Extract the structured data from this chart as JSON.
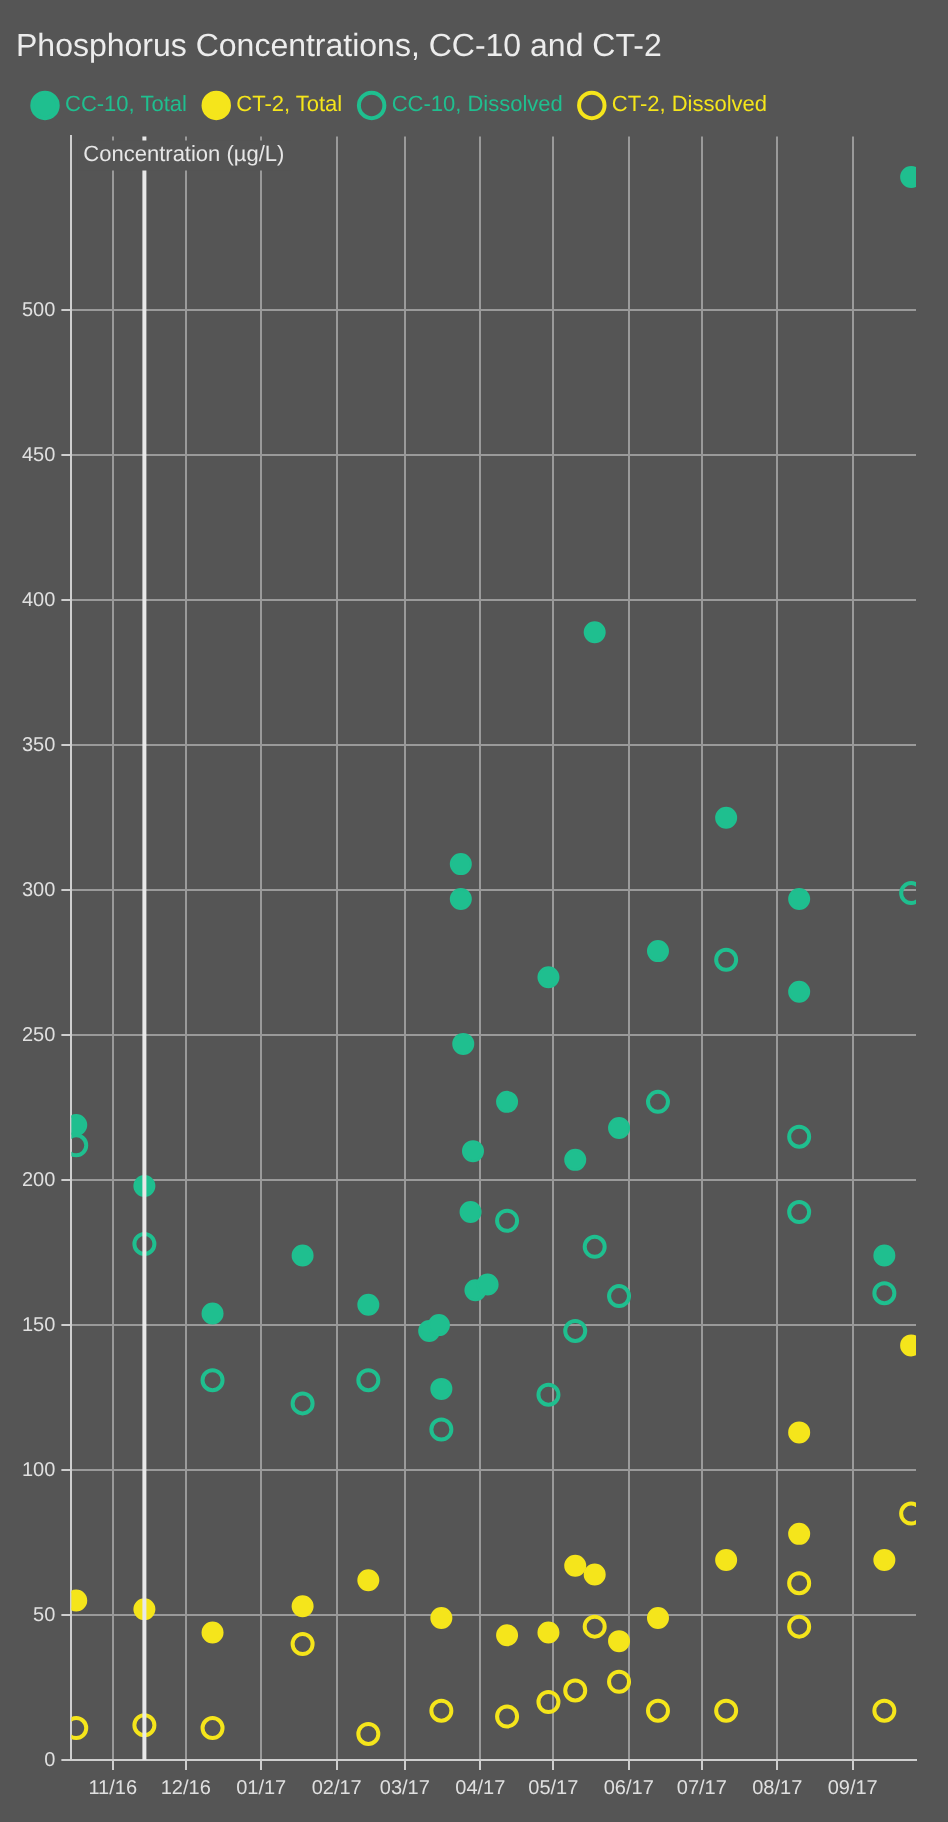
{
  "chart_data": {
    "type": "scatter",
    "title": "Phosphorus Concentrations, CC-10 and CT-2",
    "ylabel": "Concentration (µg/L)",
    "series": [
      {
        "name": "CC-10, Total",
        "color": "#1fbf8f",
        "x": [
          "2016-10-17",
          "2016-11-14",
          "2016-12-12",
          "2017-01-18",
          "2017-02-14",
          "2017-03-11",
          "2017-03-15",
          "2017-03-16",
          "2017-03-24",
          "2017-03-24",
          "2017-03-25",
          "2017-03-28",
          "2017-03-29",
          "2017-03-30",
          "2017-04-04",
          "2017-04-12",
          "2017-04-29",
          "2017-05-10",
          "2017-05-18",
          "2017-05-28",
          "2017-06-13",
          "2017-07-11",
          "2017-08-10",
          "2017-08-10",
          "2017-09-14",
          "2017-09-25"
        ],
        "values": [
          219,
          198,
          154,
          174,
          157,
          148,
          150,
          128,
          309,
          297,
          247,
          189,
          210,
          162,
          164,
          227,
          270,
          207,
          389,
          218,
          279,
          325,
          297,
          265,
          174,
          546
        ]
      },
      {
        "name": "CT-2, Total",
        "color": "#f5e51b",
        "x": [
          "2016-10-17",
          "2016-11-14",
          "2016-12-12",
          "2017-01-18",
          "2017-02-14",
          "2017-03-16",
          "2017-04-12",
          "2017-04-29",
          "2017-05-10",
          "2017-05-18",
          "2017-05-28",
          "2017-06-13",
          "2017-07-11",
          "2017-08-10",
          "2017-08-10",
          "2017-09-14",
          "2017-09-25"
        ],
        "values": [
          55,
          52,
          44,
          53,
          62,
          49,
          43,
          44,
          67,
          64,
          41,
          49,
          69,
          113,
          78,
          69,
          143
        ]
      },
      {
        "name": "CC-10, Dissolved",
        "color": "#1fbf8f",
        "x": [
          "2016-10-17",
          "2016-11-14",
          "2016-12-12",
          "2017-01-18",
          "2017-02-14",
          "2017-03-16",
          "2017-04-12",
          "2017-04-29",
          "2017-05-10",
          "2017-05-18",
          "2017-05-28",
          "2017-06-13",
          "2017-07-11",
          "2017-08-10",
          "2017-08-10",
          "2017-09-14",
          "2017-09-25"
        ],
        "values": [
          212,
          178,
          131,
          123,
          131,
          114,
          186,
          126,
          148,
          177,
          160,
          227,
          276,
          215,
          189,
          161,
          299
        ]
      },
      {
        "name": "CT-2, Dissolved",
        "color": "#f5e51b",
        "x": [
          "2016-10-17",
          "2016-11-14",
          "2016-12-12",
          "2017-01-18",
          "2017-02-14",
          "2017-03-16",
          "2017-04-12",
          "2017-04-29",
          "2017-05-10",
          "2017-05-18",
          "2017-05-28",
          "2017-06-13",
          "2017-07-11",
          "2017-08-10",
          "2017-08-10",
          "2017-09-14",
          "2017-09-25"
        ],
        "values": [
          11,
          12,
          11,
          40,
          9,
          17,
          15,
          20,
          24,
          46,
          27,
          17,
          17,
          61,
          46,
          17,
          85
        ]
      }
    ],
    "xlim": [
      "2016-10-15",
      "2017-09-27"
    ],
    "xticks": [
      {
        "value": "2016-11-01",
        "label": "11/16"
      },
      {
        "value": "2016-12-01",
        "label": "12/16"
      },
      {
        "value": "2017-01-01",
        "label": "01/17"
      },
      {
        "value": "2017-02-01",
        "label": "02/17"
      },
      {
        "value": "2017-03-01",
        "label": "03/17"
      },
      {
        "value": "2017-04-01",
        "label": "04/17"
      },
      {
        "value": "2017-05-01",
        "label": "05/17"
      },
      {
        "value": "2017-06-01",
        "label": "06/17"
      },
      {
        "value": "2017-07-01",
        "label": "07/17"
      },
      {
        "value": "2017-08-01",
        "label": "08/17"
      },
      {
        "value": "2017-09-01",
        "label": "09/17"
      }
    ],
    "ylim": [
      0,
      560
    ],
    "yticks": [
      0,
      50,
      100,
      150,
      200,
      250,
      300,
      350,
      400,
      450,
      500
    ],
    "ref_lines": [
      {
        "axis": "x",
        "value": "2016-11-14",
        "color": "#e8e8e8"
      }
    ],
    "grid": true,
    "legend": "top left",
    "marker": "circle"
  }
}
